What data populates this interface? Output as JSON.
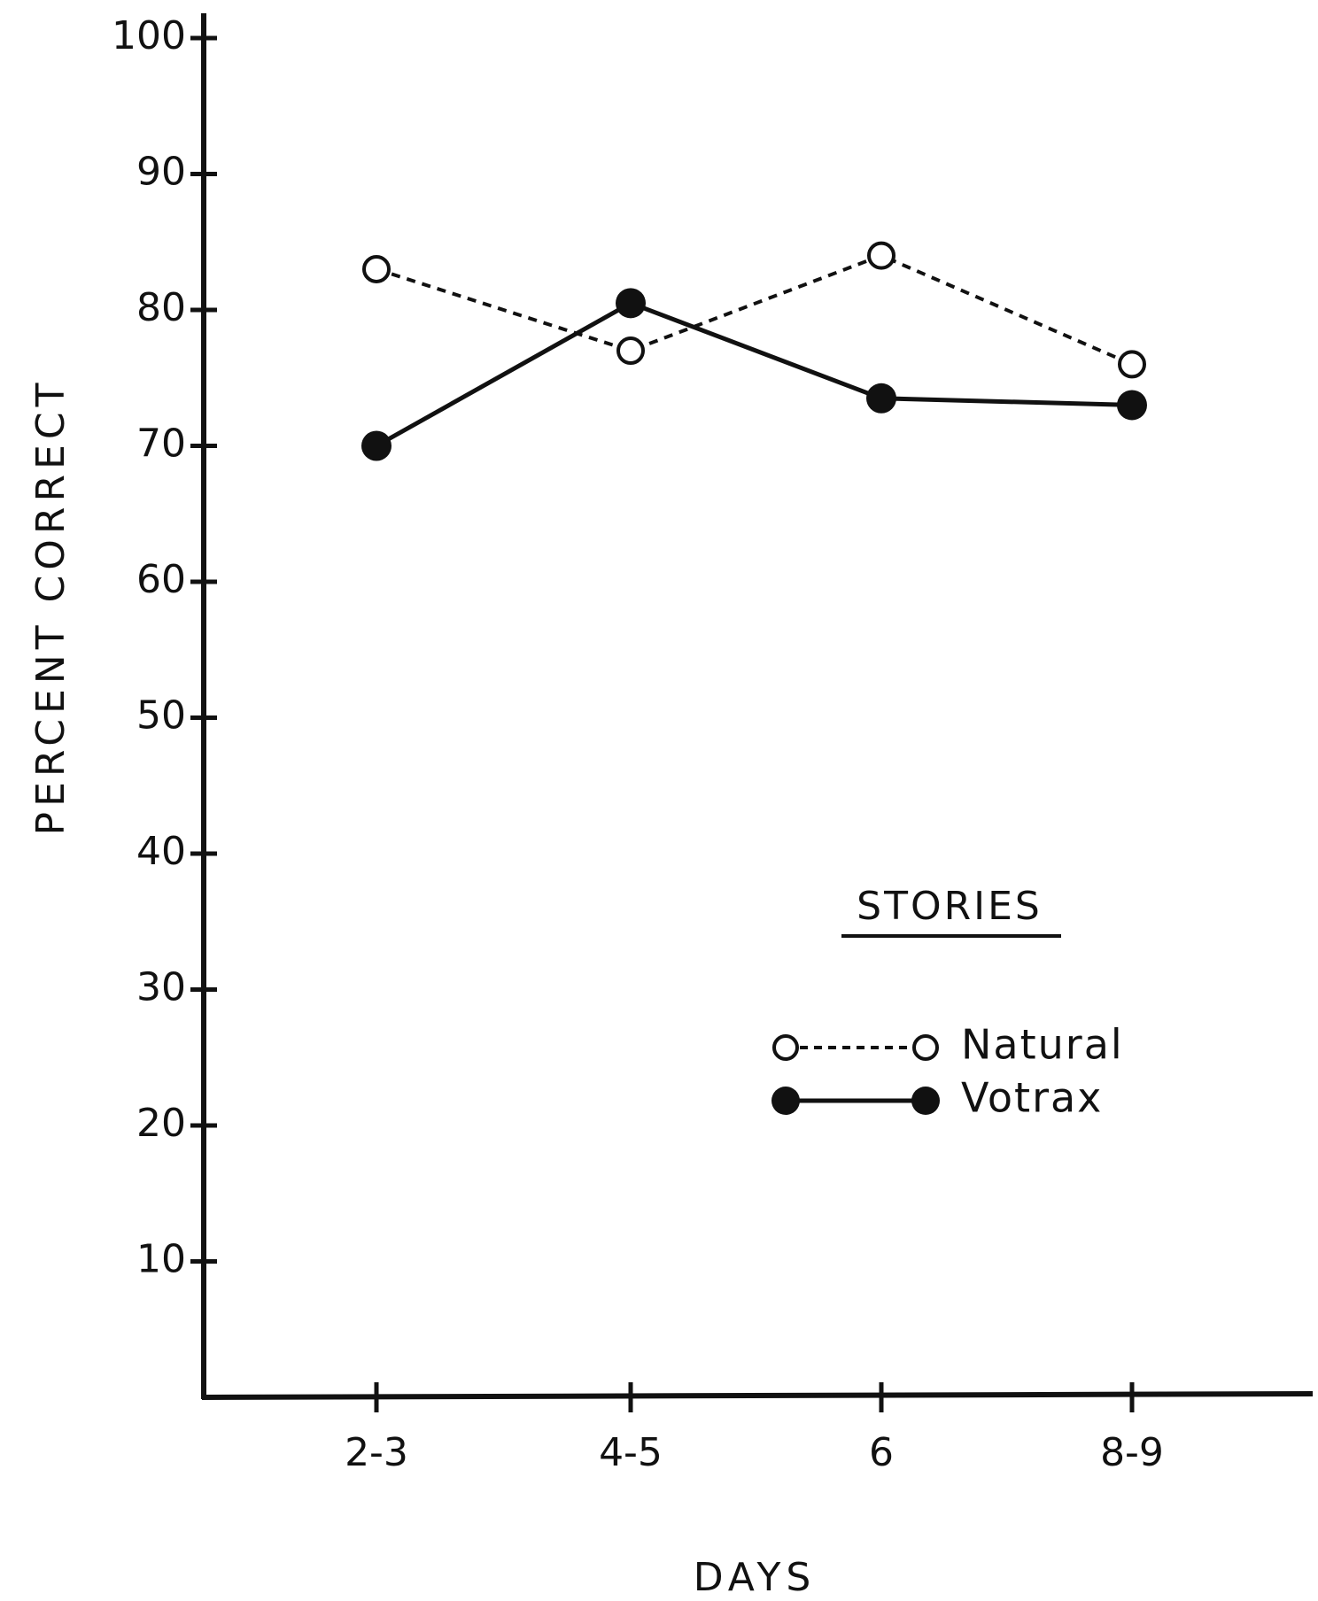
{
  "chart_data": {
    "type": "line",
    "xlabel": "DAYS",
    "ylabel": "PERCENT CORRECT",
    "categories": [
      "2-3",
      "4-5",
      "6",
      "8-9"
    ],
    "ylim": [
      0,
      100
    ],
    "yticks": [
      10,
      20,
      30,
      40,
      50,
      60,
      70,
      80,
      90,
      100
    ],
    "grid": false,
    "legend": {
      "title": "STORIES",
      "placement": "center-right"
    },
    "series": [
      {
        "name": "Natural",
        "values": [
          83,
          77,
          84,
          76
        ],
        "marker": "open-circle",
        "line": "dashed",
        "color": "#111111"
      },
      {
        "name": "Votrax",
        "values": [
          70,
          80.5,
          73.5,
          73
        ],
        "marker": "filled-circle",
        "line": "solid",
        "color": "#111111"
      }
    ]
  }
}
